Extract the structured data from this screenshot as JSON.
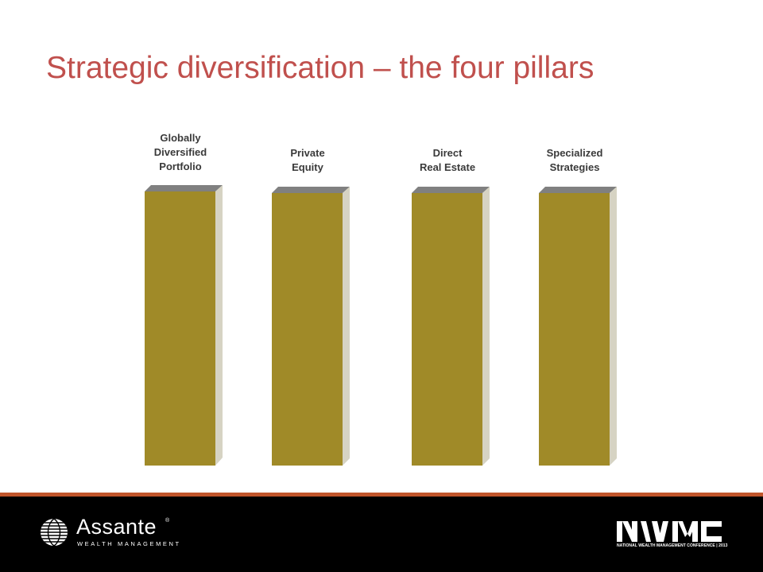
{
  "slide": {
    "title": "Strategic diversification – the four pillars"
  },
  "pillars": [
    {
      "label": "Globally\nDiversified\nPortfolio"
    },
    {
      "label": "Private\nEquity"
    },
    {
      "label": "Direct\nReal Estate"
    },
    {
      "label": "Specialized\nStrategies"
    }
  ],
  "colors": {
    "title": "#c0504d",
    "pillar_front": "#a08a28",
    "pillar_top": "#808080",
    "pillar_side": "#d6d3c3",
    "footer_bg": "#000000",
    "footer_rule": "#c0552b"
  },
  "footer": {
    "brand_name": "Assante",
    "brand_registered": "®",
    "brand_subtitle": "WEALTH MANAGEMENT",
    "brand_icon": "globe-icon",
    "conference_logo_text": "NWMC",
    "conference_caption": "NATIONAL WEALTH MANAGEMENT CONFERENCE | 2013"
  }
}
